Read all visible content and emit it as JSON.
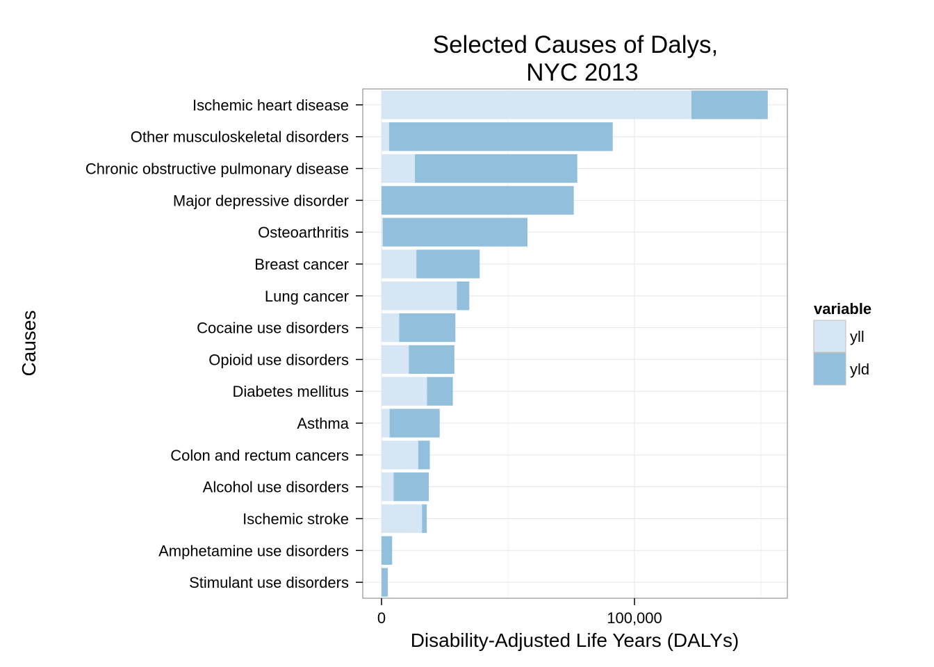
{
  "chart_data": {
    "type": "bar",
    "orientation": "horizontal",
    "stacked": true,
    "title": "Selected Causes of Dalys,",
    "title_line2": "NYC 2013",
    "xlabel": "Disability-Adjusted Life Years (DALYs)",
    "ylabel": "Causes",
    "xlim": [
      -7500,
      160000
    ],
    "x_ticks": [
      0,
      100000
    ],
    "x_tick_labels": [
      "0",
      "100,000"
    ],
    "x_minor_ticks": [
      50000,
      150000
    ],
    "grid": true,
    "legend": {
      "title": "variable",
      "position": "right",
      "entries": [
        "yll",
        "yld"
      ]
    },
    "categories": [
      "Ischemic heart disease",
      "Other musculoskeletal disorders",
      "Chronic obstructive pulmonary disease",
      "Major depressive disorder",
      "Osteoarthritis",
      "Breast cancer",
      "Lung cancer",
      "Cocaine use disorders",
      "Opioid use disorders",
      "Diabetes mellitus",
      "Asthma",
      "Colon and rectum cancers",
      "Alcohol use disorders",
      "Ischemic stroke",
      "Amphetamine use disorders",
      "Stimulant use disorders"
    ],
    "series": [
      {
        "name": "yll",
        "color": "#d6e6f4",
        "values": [
          122500,
          3000,
          13200,
          0,
          500,
          13800,
          29800,
          7000,
          10800,
          18000,
          3200,
          14500,
          4800,
          16000,
          0,
          0
        ]
      },
      {
        "name": "yld",
        "color": "#92bfdc",
        "values": [
          30200,
          88400,
          64200,
          76000,
          57200,
          25000,
          4900,
          22200,
          18000,
          10200,
          19800,
          4600,
          13900,
          1900,
          4200,
          2500
        ]
      }
    ]
  }
}
